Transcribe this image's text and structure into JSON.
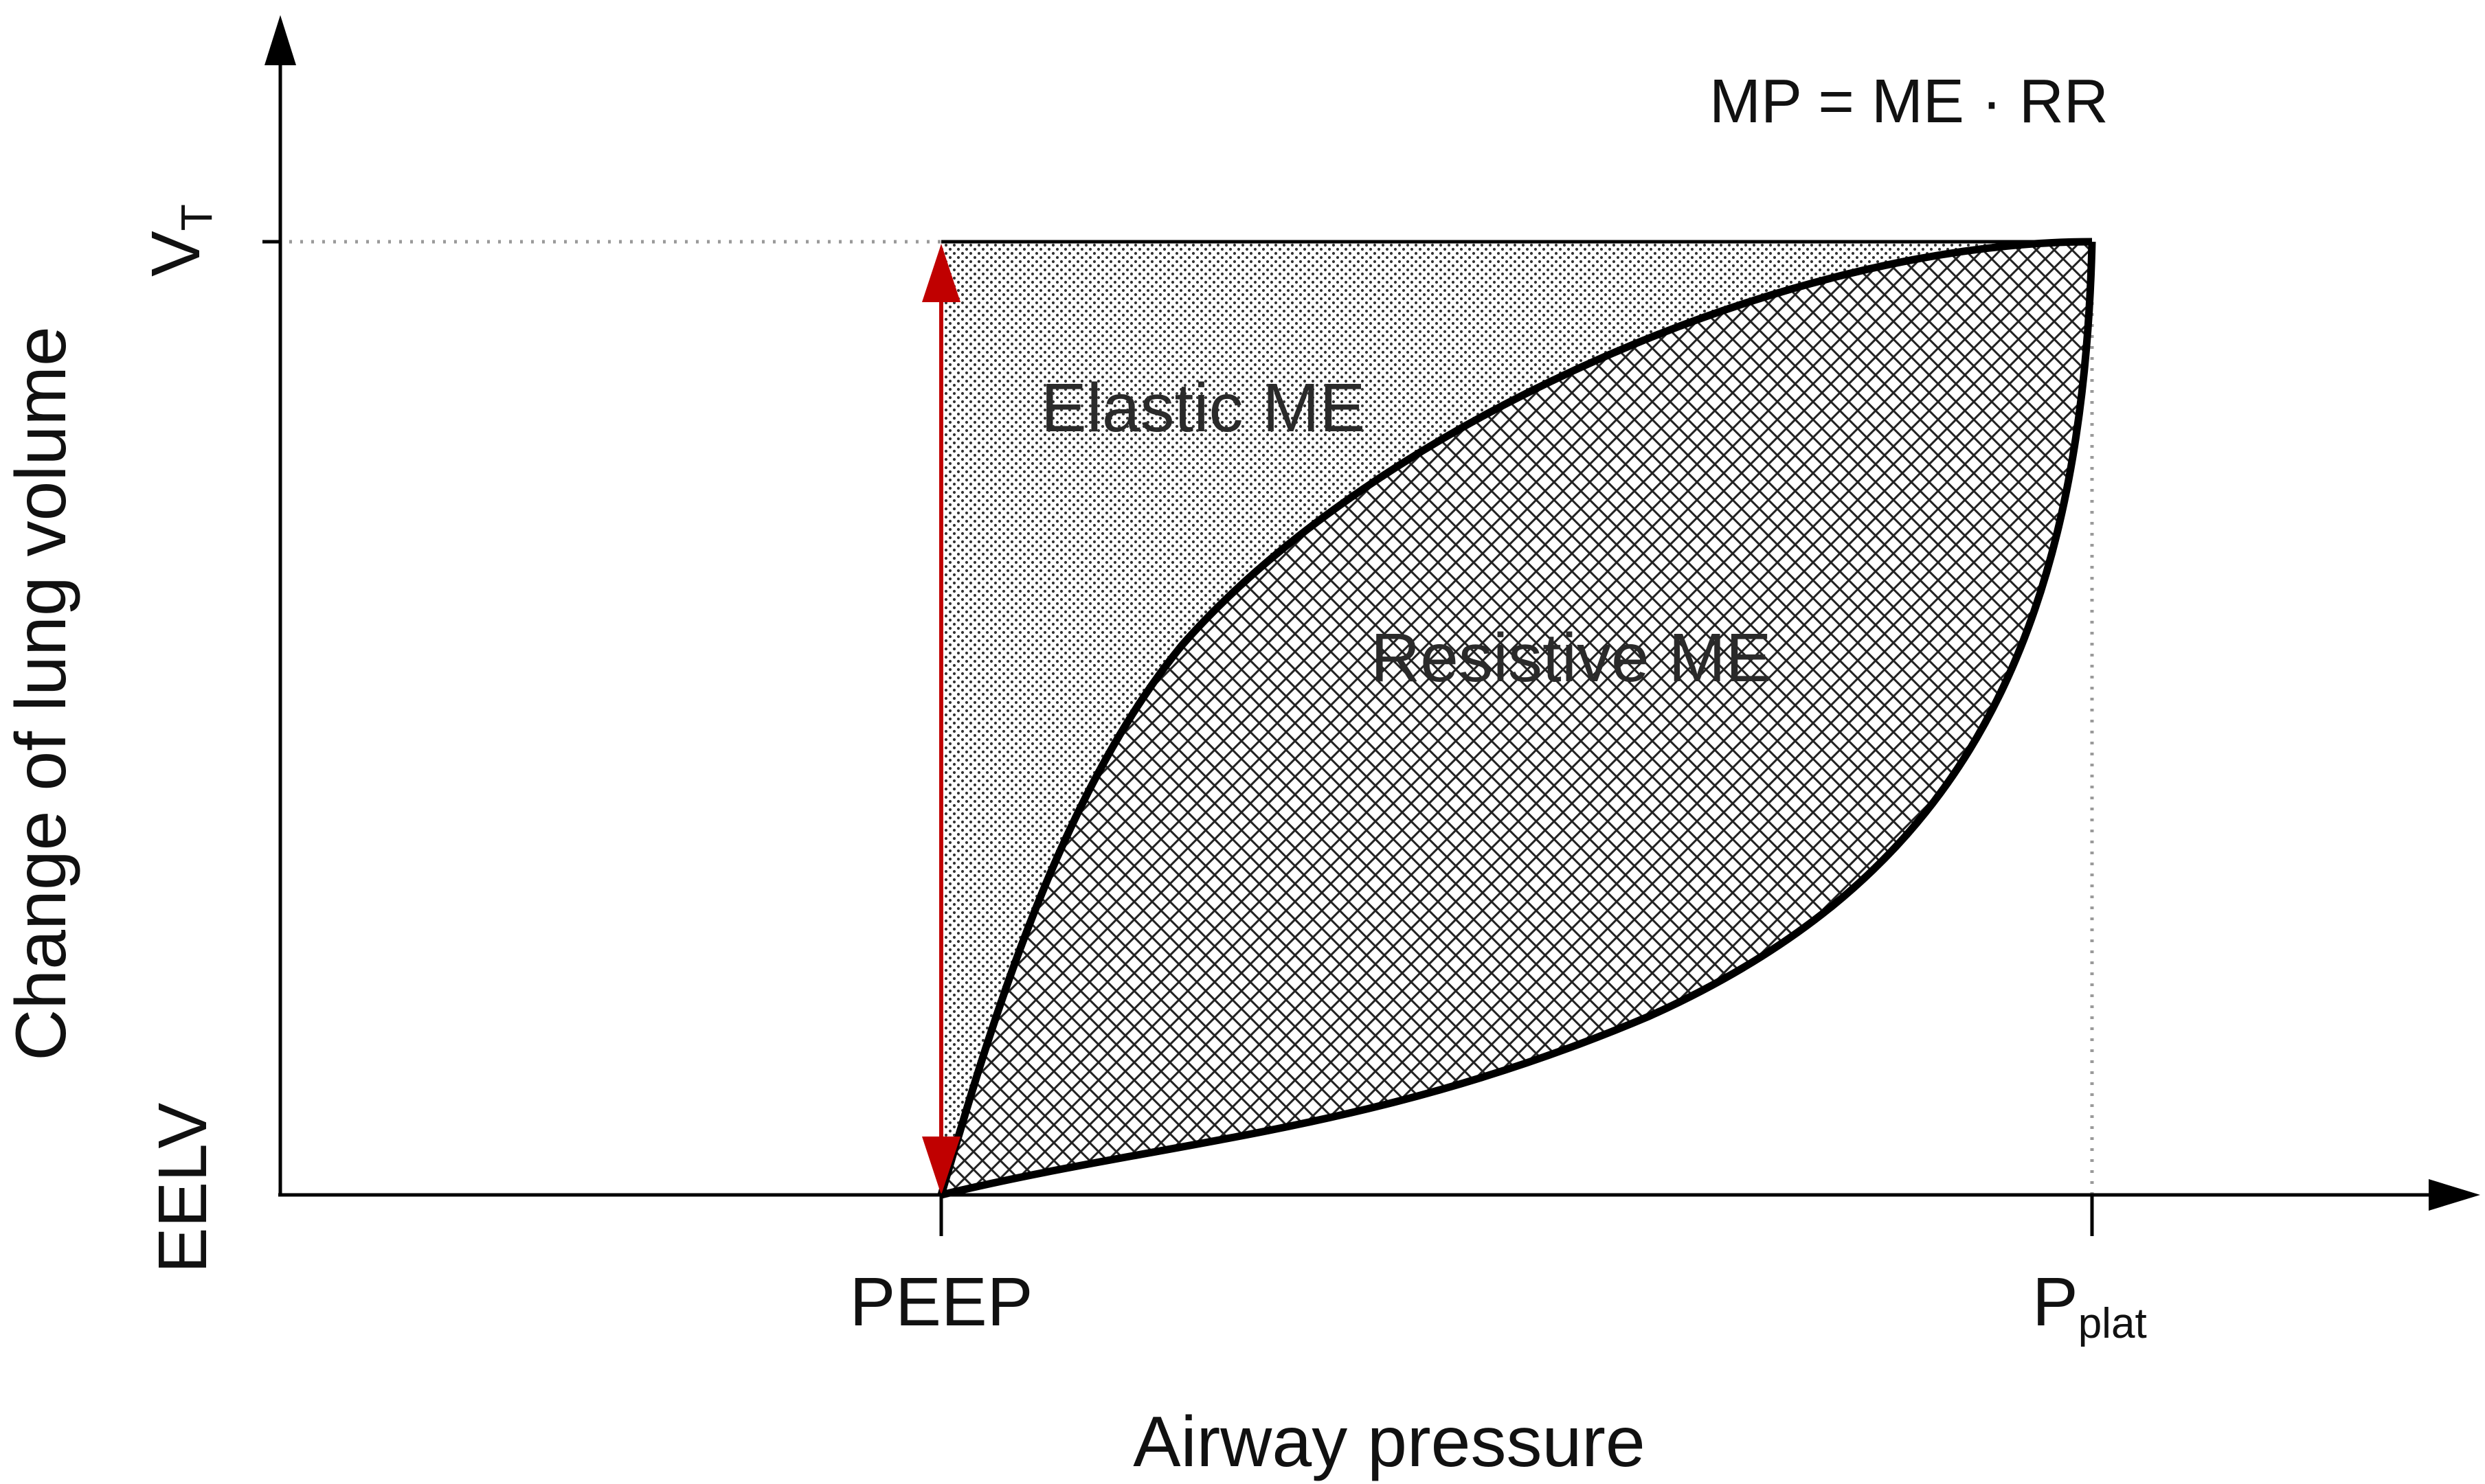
{
  "formula": "MP = ME · RR",
  "y_axis": {
    "title": "Change of lung volume",
    "top_tick": {
      "main": "V",
      "sub": "T"
    },
    "bottom_tick": "EELV"
  },
  "x_axis": {
    "title": "Airway pressure",
    "left_tick": "PEEP",
    "right_tick": {
      "main": "P",
      "sub": "plat"
    }
  },
  "regions": {
    "elastic_label": "Elastic ME",
    "resistive_label": "Resistive ME"
  },
  "colors": {
    "axis": "#000000",
    "loop": "#000000",
    "arrow": "#c00000",
    "guide": "#9a9a9a",
    "pattern": "#333333"
  }
}
